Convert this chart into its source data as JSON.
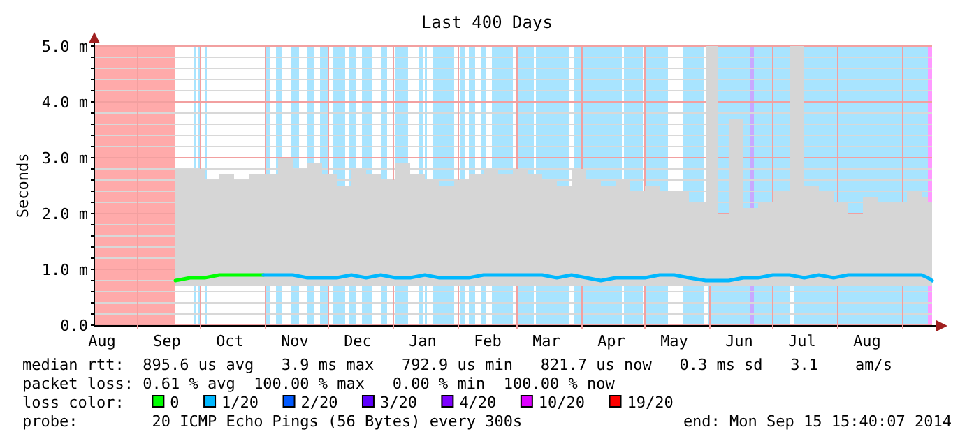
{
  "chart_data": {
    "type": "line",
    "title": "Last 400 Days",
    "ylabel": "Seconds",
    "legend_title": "loss color:",
    "legend": "bottom",
    "grid": true,
    "line_style": "solid",
    "marker": "none",
    "xlim": [
      "2013-08-11",
      "2014-09-15"
    ],
    "xticks": [
      {
        "value": "2013-08-15",
        "label": "Aug"
      },
      {
        "value": "2013-09-01",
        "label": null
      },
      {
        "value": "2013-09-15",
        "label": "Sep"
      },
      {
        "value": "2013-10-01",
        "label": null
      },
      {
        "value": "2013-10-15",
        "label": "Oct"
      },
      {
        "value": "2013-11-01",
        "label": null
      },
      {
        "value": "2013-11-15",
        "label": "Nov"
      },
      {
        "value": "2013-12-01",
        "label": null
      },
      {
        "value": "2013-12-15",
        "label": "Dec"
      },
      {
        "value": "2014-01-01",
        "label": null
      },
      {
        "value": "2014-01-15",
        "label": "Jan"
      },
      {
        "value": "2014-02-01",
        "label": null
      },
      {
        "value": "2014-02-15",
        "label": "Feb"
      },
      {
        "value": "2014-03-01",
        "label": null
      },
      {
        "value": "2014-03-15",
        "label": "Mar"
      },
      {
        "value": "2014-04-01",
        "label": null
      },
      {
        "value": "2014-04-15",
        "label": "Apr"
      },
      {
        "value": "2014-05-01",
        "label": null
      },
      {
        "value": "2014-05-15",
        "label": "May"
      },
      {
        "value": "2014-06-01",
        "label": null
      },
      {
        "value": "2014-06-15",
        "label": "Jun"
      },
      {
        "value": "2014-07-01",
        "label": null
      },
      {
        "value": "2014-07-15",
        "label": "Jul"
      },
      {
        "value": "2014-08-01",
        "label": null
      },
      {
        "value": "2014-08-15",
        "label": "Aug"
      },
      {
        "value": "2014-09-01",
        "label": null
      }
    ],
    "ylim": [
      0,
      5
    ],
    "yticks": [
      {
        "value": 0,
        "label": "0.0"
      },
      {
        "value": 0.2,
        "label": null
      },
      {
        "value": 0.4,
        "label": null
      },
      {
        "value": 0.6,
        "label": null
      },
      {
        "value": 0.8,
        "label": null
      },
      {
        "value": 1,
        "label": "1.0 m"
      },
      {
        "value": 1.2,
        "label": null
      },
      {
        "value": 1.4,
        "label": null
      },
      {
        "value": 1.6,
        "label": null
      },
      {
        "value": 1.8,
        "label": null
      },
      {
        "value": 2,
        "label": "2.0 m"
      },
      {
        "value": 2.2,
        "label": null
      },
      {
        "value": 2.4,
        "label": null
      },
      {
        "value": 2.6,
        "label": null
      },
      {
        "value": 2.8,
        "label": null
      },
      {
        "value": 3,
        "label": "3.0 m"
      },
      {
        "value": 3.2,
        "label": null
      },
      {
        "value": 3.4,
        "label": null
      },
      {
        "value": 3.6,
        "label": null
      },
      {
        "value": 3.8,
        "label": null
      },
      {
        "value": 4,
        "label": "4.0 m"
      },
      {
        "value": 4.2,
        "label": null
      },
      {
        "value": 4.4,
        "label": null
      },
      {
        "value": 4.6,
        "label": null
      },
      {
        "value": 4.8,
        "label": null
      },
      {
        "value": 5,
        "label": "5.0 m"
      }
    ],
    "bands": [
      {
        "axis": "x",
        "from": "2013-08-11",
        "to": "2013-09-19",
        "color": "#ffaaaa"
      },
      {
        "axis": "x",
        "from": "2013-09-28",
        "to": "2013-09-29",
        "color": "#a8e4ff"
      },
      {
        "axis": "x",
        "from": "2013-09-30",
        "to": "2013-10-01",
        "color": "#a8e4ff"
      },
      {
        "axis": "x",
        "from": "2013-10-03",
        "to": "2013-10-04",
        "color": "#a8e4ff"
      },
      {
        "axis": "x",
        "from": "2013-11-01",
        "to": "2013-11-03",
        "color": "#a8e4ff"
      },
      {
        "axis": "x",
        "from": "2013-11-06",
        "to": "2013-11-09",
        "color": "#a8e4ff"
      },
      {
        "axis": "x",
        "from": "2013-11-13",
        "to": "2013-11-17",
        "color": "#a8e4ff"
      },
      {
        "axis": "x",
        "from": "2013-11-21",
        "to": "2013-11-24",
        "color": "#a8e4ff"
      },
      {
        "axis": "x",
        "from": "2013-11-27",
        "to": "2013-12-01",
        "color": "#a8e4ff"
      },
      {
        "axis": "x",
        "from": "2013-12-03",
        "to": "2013-12-09",
        "color": "#a8e4ff"
      },
      {
        "axis": "x",
        "from": "2013-12-11",
        "to": "2013-12-14",
        "color": "#a8e4ff"
      },
      {
        "axis": "x",
        "from": "2013-12-17",
        "to": "2013-12-22",
        "color": "#a8e4ff"
      },
      {
        "axis": "x",
        "from": "2013-12-26",
        "to": "2013-12-29",
        "color": "#a8e4ff"
      },
      {
        "axis": "x",
        "from": "2014-01-02",
        "to": "2014-01-08",
        "color": "#a8e4ff"
      },
      {
        "axis": "x",
        "from": "2014-01-13",
        "to": "2014-01-15",
        "color": "#a8e4ff"
      },
      {
        "axis": "x",
        "from": "2014-01-16",
        "to": "2014-01-17",
        "color": "#a8e4ff"
      },
      {
        "axis": "x",
        "from": "2014-01-20",
        "to": "2014-01-30",
        "color": "#a8e4ff"
      },
      {
        "axis": "x",
        "from": "2014-02-02",
        "to": "2014-02-04",
        "color": "#a8e4ff"
      },
      {
        "axis": "x",
        "from": "2014-02-06",
        "to": "2014-02-09",
        "color": "#a8e4ff"
      },
      {
        "axis": "x",
        "from": "2014-02-12",
        "to": "2014-02-14",
        "color": "#a8e4ff"
      },
      {
        "axis": "x",
        "from": "2014-02-17",
        "to": "2014-02-27",
        "color": "#a8e4ff"
      },
      {
        "axis": "x",
        "from": "2014-03-01",
        "to": "2014-03-09",
        "color": "#a8e4ff"
      },
      {
        "axis": "x",
        "from": "2014-03-10",
        "to": "2014-03-26",
        "color": "#a8e4ff"
      },
      {
        "axis": "x",
        "from": "2014-03-28",
        "to": "2014-04-20",
        "color": "#a8e4ff"
      },
      {
        "axis": "x",
        "from": "2014-04-21",
        "to": "2014-04-30",
        "color": "#a8e4ff"
      },
      {
        "axis": "x",
        "from": "2014-05-01",
        "to": "2014-05-12",
        "color": "#a8e4ff"
      },
      {
        "axis": "x",
        "from": "2014-05-19",
        "to": "2014-05-29",
        "color": "#a8e4ff"
      },
      {
        "axis": "x",
        "from": "2014-05-31",
        "to": "2014-06-20",
        "color": "#a8e4ff"
      },
      {
        "axis": "x",
        "from": "2014-06-20",
        "to": "2014-06-22",
        "color": "#c8a8ff"
      },
      {
        "axis": "x",
        "from": "2014-06-22",
        "to": "2014-07-09",
        "color": "#a8e4ff"
      },
      {
        "axis": "x",
        "from": "2014-07-11",
        "to": "2014-09-13",
        "color": "#a8e4ff"
      },
      {
        "axis": "x",
        "from": "2014-09-13",
        "to": "2014-09-15",
        "color": "#ff99ff"
      }
    ],
    "series": [
      {
        "name": "0",
        "color": "#00ff00",
        "x": [
          "2013-09-19",
          "2013-09-26",
          "2013-10-03",
          "2013-10-10",
          "2013-10-17",
          "2013-10-24",
          "2013-10-31"
        ],
        "values": [
          0.8,
          0.85,
          0.85,
          0.9,
          0.9,
          0.9,
          0.9
        ],
        "lower": [
          0.7,
          0.7,
          0.7,
          0.7,
          0.7,
          0.7,
          0.7
        ],
        "upper": [
          2.8,
          2.8,
          2.6,
          2.7,
          2.6,
          2.7,
          2.7
        ]
      },
      {
        "name": "1/20",
        "color": "#00b8ff",
        "x": [
          "2013-10-31",
          "2013-11-07",
          "2013-11-14",
          "2013-11-21",
          "2013-11-28",
          "2013-12-05",
          "2013-12-12",
          "2013-12-19",
          "2013-12-26",
          "2014-01-02",
          "2014-01-09",
          "2014-01-16",
          "2014-01-23",
          "2014-01-30",
          "2014-02-06",
          "2014-02-13",
          "2014-02-20",
          "2014-02-27",
          "2014-03-06",
          "2014-03-13",
          "2014-03-20",
          "2014-03-27",
          "2014-04-03",
          "2014-04-10",
          "2014-04-17",
          "2014-04-24",
          "2014-05-01",
          "2014-05-08",
          "2014-05-15",
          "2014-05-22",
          "2014-05-30",
          "2014-06-05",
          "2014-06-10",
          "2014-06-17",
          "2014-06-24",
          "2014-07-01",
          "2014-07-09",
          "2014-07-16",
          "2014-07-23",
          "2014-07-30",
          "2014-08-06",
          "2014-08-13",
          "2014-08-20",
          "2014-08-27",
          "2014-09-03",
          "2014-09-10",
          "2014-09-13",
          "2014-09-15"
        ],
        "values": [
          0.9,
          0.9,
          0.9,
          0.85,
          0.85,
          0.85,
          0.9,
          0.85,
          0.9,
          0.85,
          0.85,
          0.9,
          0.85,
          0.85,
          0.85,
          0.9,
          0.9,
          0.9,
          0.9,
          0.9,
          0.85,
          0.9,
          0.85,
          0.8,
          0.85,
          0.85,
          0.85,
          0.9,
          0.9,
          0.85,
          0.8,
          0.8,
          0.8,
          0.85,
          0.85,
          0.9,
          0.9,
          0.85,
          0.9,
          0.85,
          0.9,
          0.9,
          0.9,
          0.9,
          0.9,
          0.9,
          0.85,
          0.8
        ],
        "lower": [
          0.7,
          0.7,
          0.7,
          0.7,
          0.7,
          0.7,
          0.7,
          0.7,
          0.7,
          0.7,
          0.7,
          0.7,
          0.7,
          0.7,
          0.7,
          0.7,
          0.7,
          0.7,
          0.7,
          0.7,
          0.7,
          0.7,
          0.7,
          0.7,
          0.7,
          0.7,
          0.7,
          0.7,
          0.7,
          0.7,
          0.7,
          0.7,
          0.7,
          0.7,
          0.7,
          0.7,
          0.7,
          0.7,
          0.7,
          0.7,
          0.7,
          0.7,
          0.7,
          0.7,
          0.7,
          0.7,
          0.7,
          0.7
        ],
        "upper": [
          2.7,
          3.0,
          2.8,
          2.9,
          2.7,
          2.5,
          2.8,
          2.7,
          2.6,
          2.9,
          2.7,
          2.6,
          2.5,
          2.6,
          2.7,
          2.8,
          2.7,
          2.8,
          2.7,
          2.6,
          2.5,
          2.8,
          2.6,
          2.5,
          2.6,
          2.4,
          2.5,
          2.4,
          2.4,
          2.2,
          5.0,
          2.0,
          3.7,
          2.1,
          2.2,
          2.4,
          5.0,
          2.5,
          2.4,
          2.2,
          2.0,
          2.3,
          2.2,
          2.2,
          2.4,
          2.3,
          2.2,
          1.8
        ]
      },
      {
        "name": "2/20",
        "color": "#0059ff"
      },
      {
        "name": "3/20",
        "color": "#5e00ff"
      },
      {
        "name": "4/20",
        "color": "#7e00ff"
      },
      {
        "name": "10/20",
        "color": "#dd00ff"
      },
      {
        "name": "19/20",
        "color": "#ff0000"
      }
    ],
    "annotations": [
      "median rtt:  895.6 us avg   3.9 ms max   792.9 us min   821.7 us now   0.3 ms sd   3.1    am/s",
      "packet loss: 0.61 % avg  100.00 % max   0.00 % min  100.00 % now",
      "probe:        20 ICMP Echo Pings (56 Bytes) every 300s",
      "end: Mon Sep 15 15:40:07 2014"
    ]
  }
}
